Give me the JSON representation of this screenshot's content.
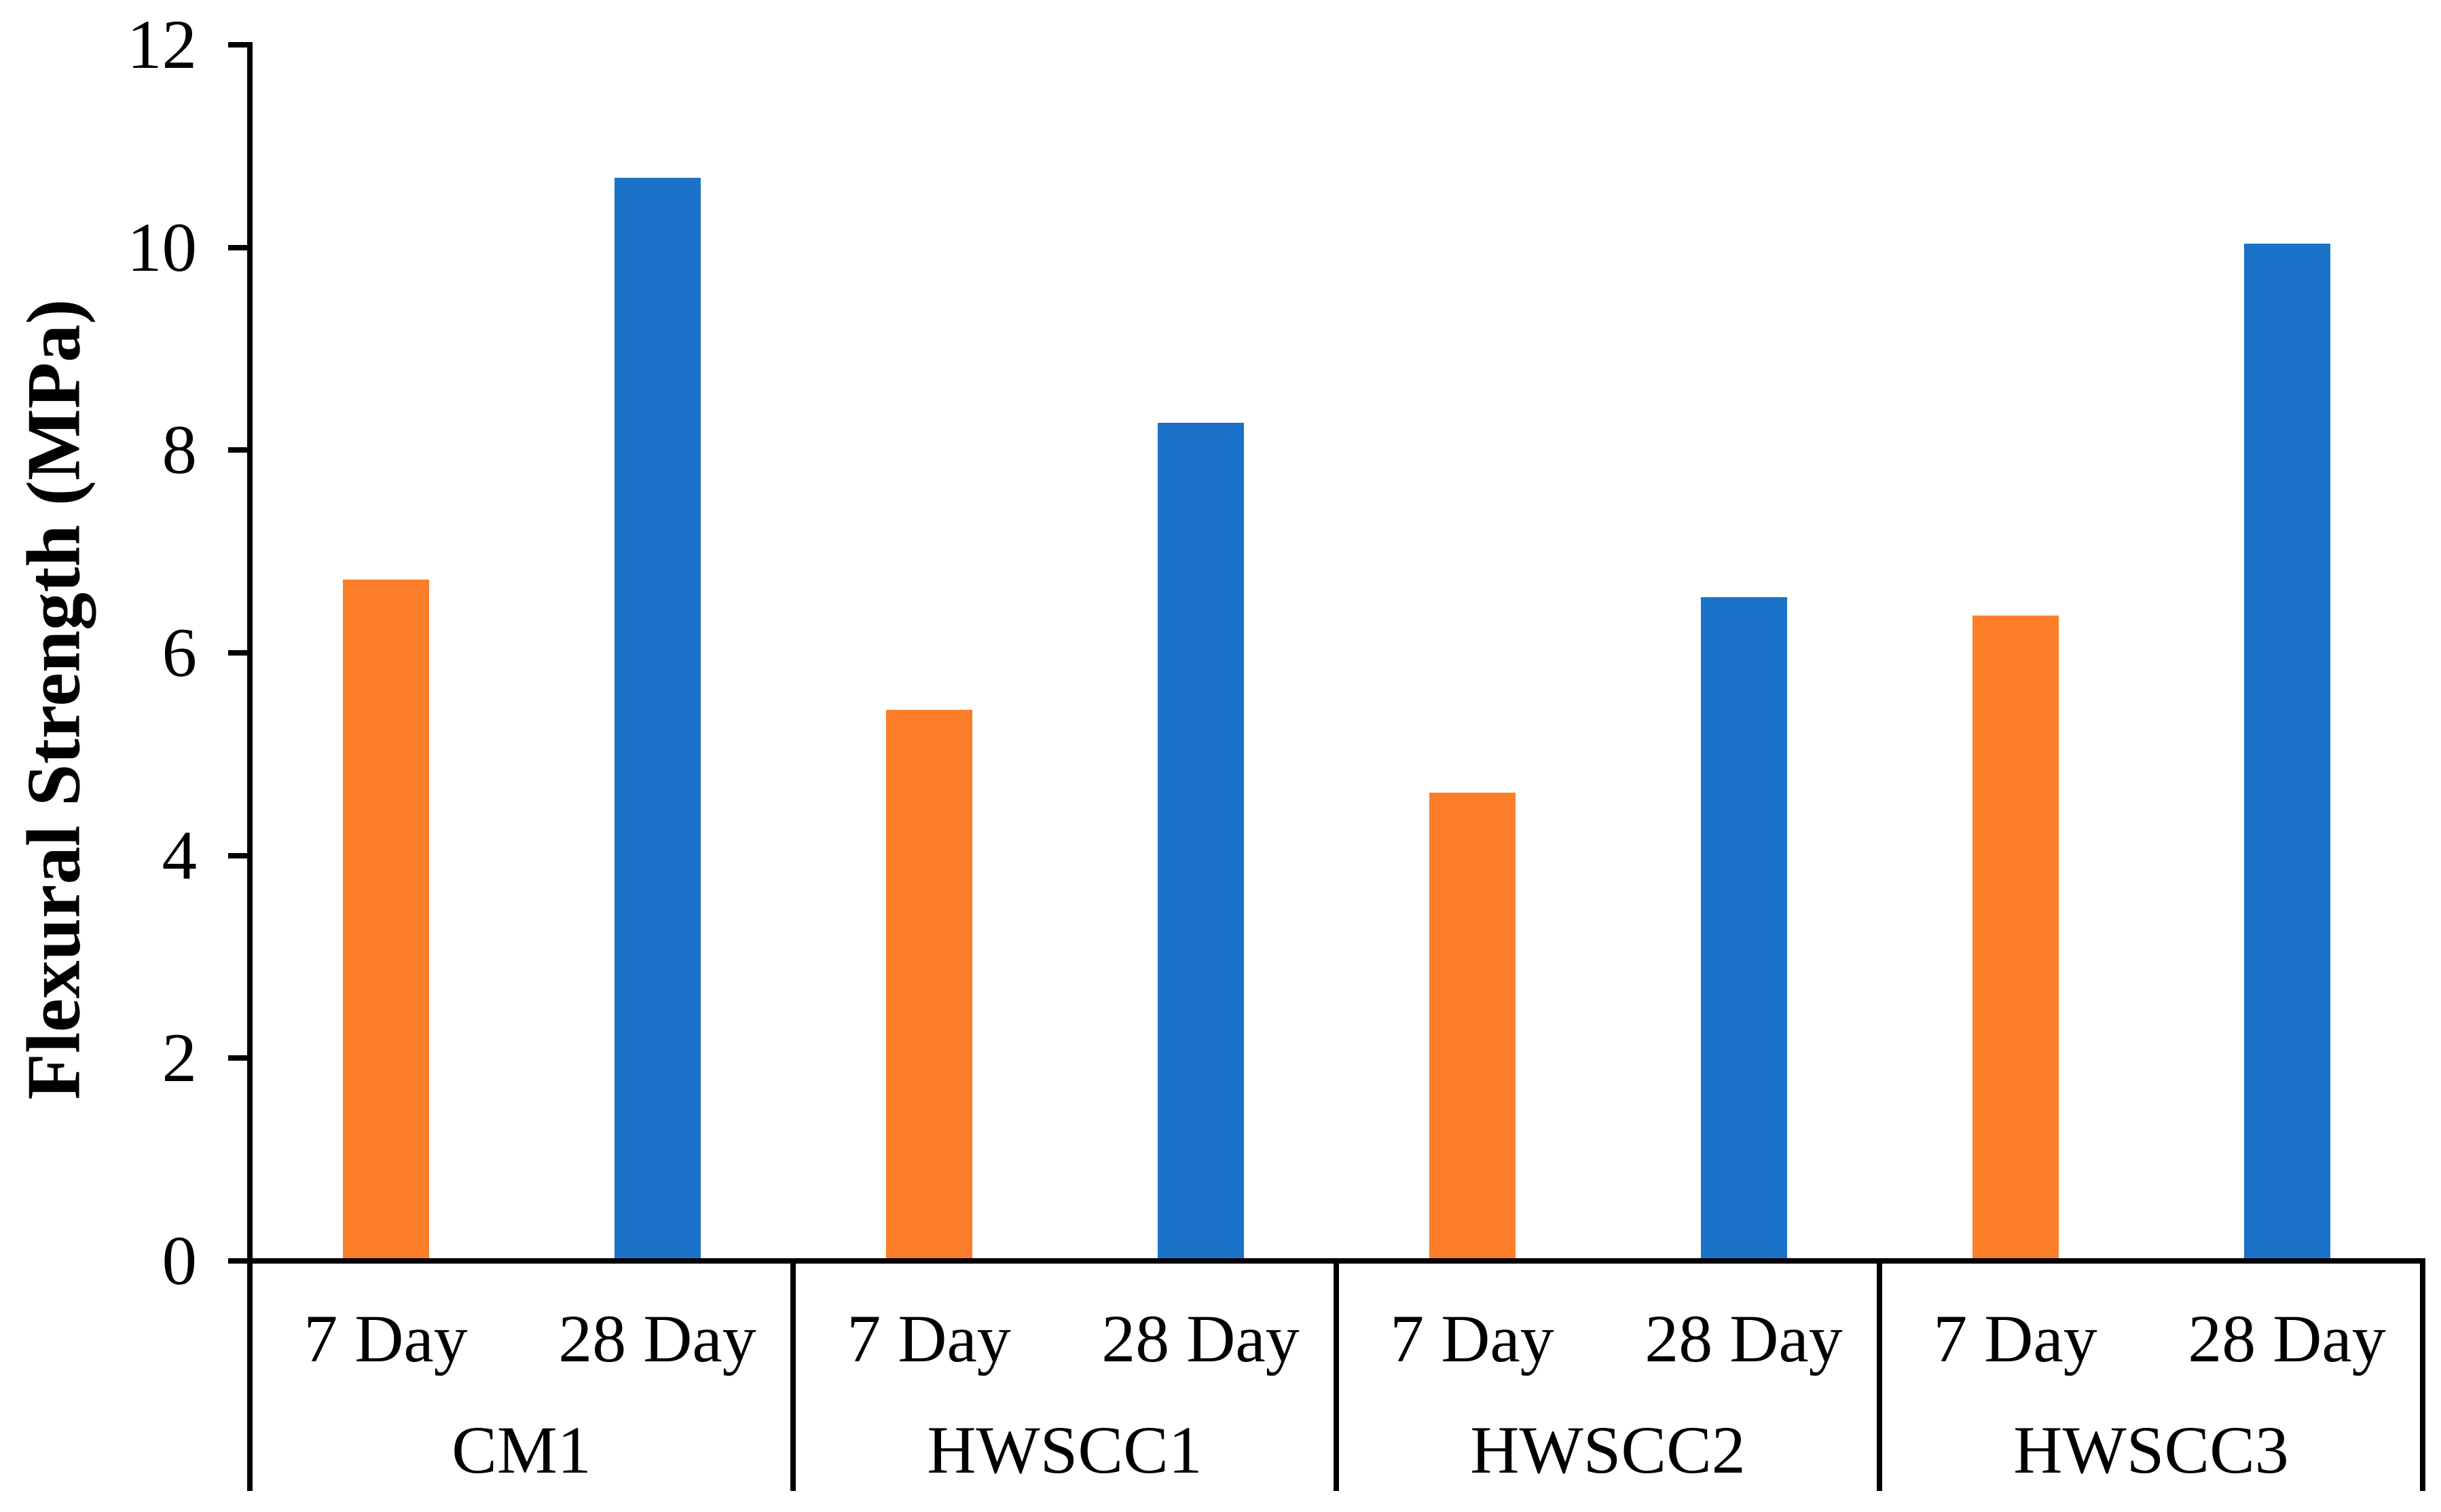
{
  "figure": {
    "background": "#FFFFFF"
  },
  "chart_data": {
    "type": "bar",
    "title": "",
    "ylabel": "Flexural Strength (MPa)",
    "xlabel": "",
    "ylim": [
      0,
      12
    ],
    "yticks": [
      0,
      2,
      4,
      6,
      8,
      10,
      12
    ],
    "y_tick_labels": [
      "0",
      "2",
      "4",
      "6",
      "8",
      "10",
      "12"
    ],
    "groups": [
      "CM1",
      "HWSCC1",
      "HWSCC2",
      "HWSCC3"
    ],
    "sub_categories": [
      "7 Day",
      "28 Day"
    ],
    "series": [
      {
        "name": "7 Day",
        "color": "#FD7E28",
        "values": [
          6.72,
          5.44,
          4.62,
          6.37
        ]
      },
      {
        "name": "28 Day",
        "color": "#1A73C8",
        "values": [
          10.69,
          8.27,
          6.55,
          10.04
        ]
      }
    ],
    "grid": false,
    "legend": "none",
    "axis_color": "#000000",
    "tick_label_color": "#000000"
  }
}
